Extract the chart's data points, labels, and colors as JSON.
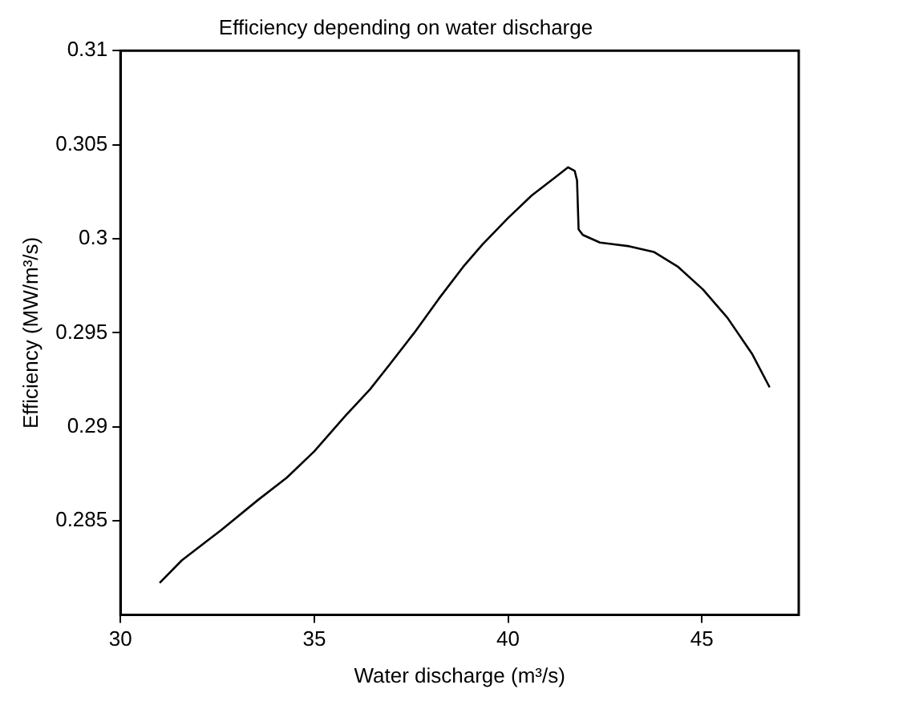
{
  "chart_data": {
    "type": "line",
    "title": "Efficiency depending on water discharge",
    "xlabel": "Water discharge (m³/s)",
    "ylabel": "Efficiency (MW/m³/s)",
    "series": [
      {
        "color": "#000000",
        "x": [
          31.01,
          31.58,
          32.59,
          33.54,
          34.29,
          35.0,
          35.81,
          36.44,
          36.94,
          37.58,
          38.21,
          38.84,
          39.34,
          40.0,
          40.61,
          41.24,
          41.55,
          41.72,
          41.78,
          41.82,
          41.93,
          42.37,
          43.13,
          43.76,
          44.39,
          45.03,
          45.66,
          46.29,
          46.75
        ],
        "values": [
          0.2817,
          0.2829,
          0.2845,
          0.2861,
          0.2873,
          0.2887,
          0.2906,
          0.292,
          0.2933,
          0.295,
          0.2968,
          0.2985,
          0.2997,
          0.3011,
          0.3023,
          0.3033,
          0.3038,
          0.3036,
          0.3031,
          0.3005,
          0.3002,
          0.2998,
          0.2996,
          0.2993,
          0.2985,
          0.2973,
          0.2958,
          0.2939,
          0.2921
        ]
      }
    ],
    "xlim": [
      30,
      47.5
    ],
    "xticks": [
      30,
      35,
      40,
      45
    ],
    "ylim": [
      0.28,
      0.31
    ],
    "yticks": [
      0.285,
      0.29,
      0.295,
      0.3,
      0.305,
      0.31
    ],
    "grid": false,
    "legend": false,
    "marker": "none",
    "line_style": "solid"
  }
}
